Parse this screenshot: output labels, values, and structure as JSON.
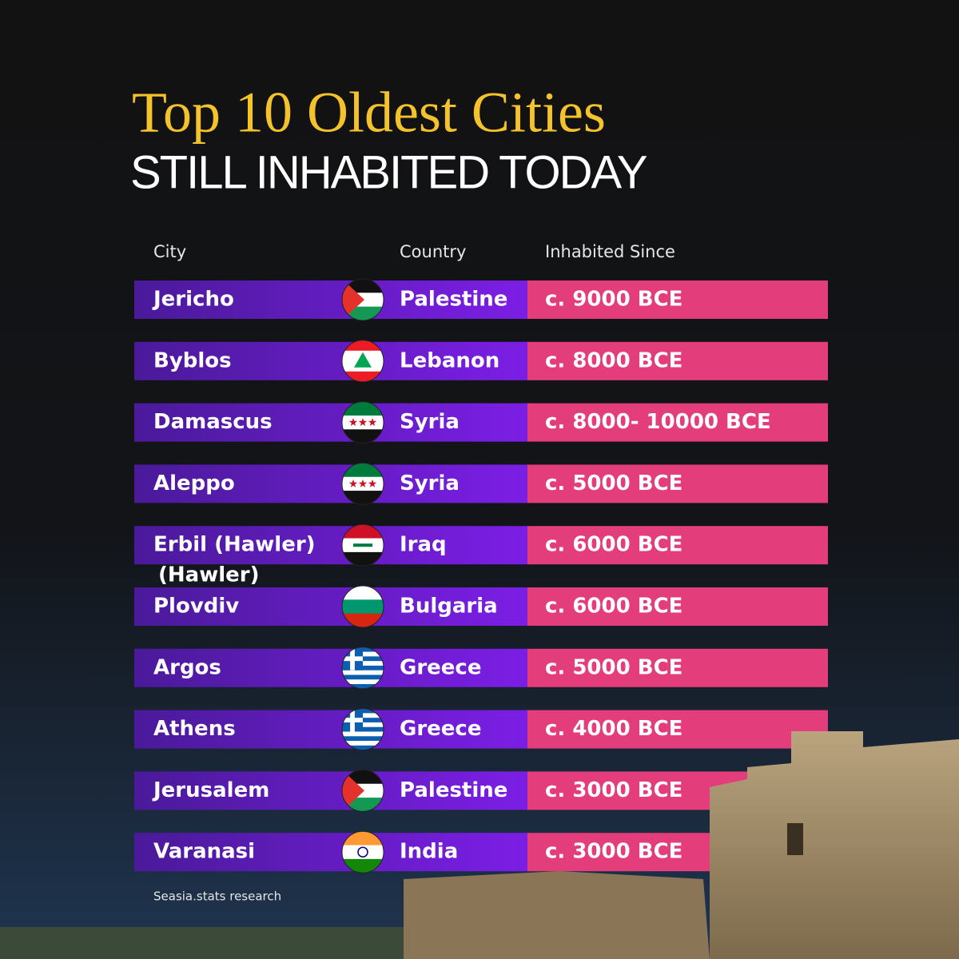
{
  "header": {
    "title": "Top 10 Oldest Cities",
    "subtitle": "STILL INHABITED TODAY"
  },
  "table": {
    "columns": [
      "City",
      "Country",
      "Inhabited Since"
    ],
    "rows": [
      [
        "Jericho",
        "Palestine",
        "c. 9000 BCE"
      ],
      [
        "Byblos",
        "Lebanon",
        "c. 8000 BCE"
      ],
      [
        "Damascus",
        "Syria",
        "c. 8000- 10000 BCE"
      ],
      [
        "Aleppo",
        "Syria",
        "c. 5000 BCE"
      ],
      [
        "Erbil (Hawler)",
        "Iraq",
        "c. 6000 BCE"
      ],
      [
        "Plovdiv",
        "Bulgaria",
        "c. 6000 BCE"
      ],
      [
        "Argos",
        "Greece",
        "c. 5000 BCE"
      ],
      [
        "Athens",
        "Greece",
        "c. 4000 BCE"
      ],
      [
        "Jerusalem",
        "Palestine",
        "c. 3000 BCE"
      ],
      [
        "Varanasi",
        "India",
        "c. 3000 BCE"
      ]
    ],
    "overflow_text": "(Hawler)"
  },
  "footer": "Seasia.stats research"
}
